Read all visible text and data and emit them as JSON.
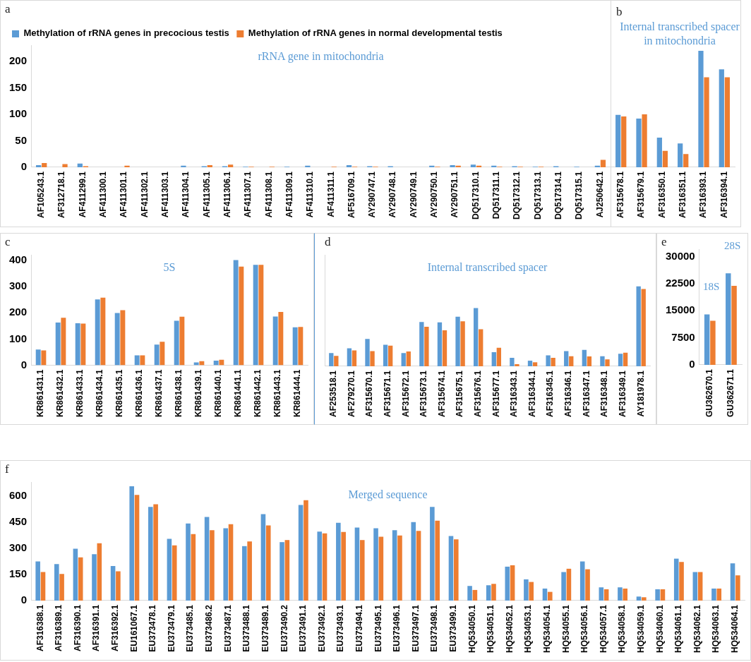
{
  "chart_data": [
    {
      "type": "bar",
      "title": "a",
      "subtitle": "rRNA gene in mitochondria",
      "legend": "top left",
      "grid": false,
      "categories": [
        "AF105243.1",
        "AF312718.1",
        "AF411299.1",
        "AF411300.1",
        "AF411301.1",
        "AF411302.1",
        "AF411303.1",
        "AF411304.1",
        "AF411305.1",
        "AF411306.1",
        "AF411307.1",
        "AF411308.1",
        "AF411309.1",
        "AF411310.1",
        "AF411311.1",
        "AF516709.1",
        "AY290747.1",
        "AY290748.1",
        "AY290749.1",
        "AY290750.1",
        "AY290751.1",
        "DQ517310.1",
        "DQ517311.1",
        "DQ517312.1",
        "DQ517313.1",
        "DQ517314.1",
        "DQ517315.1",
        "AJ250642.1",
        "AF315678.1",
        "AF315679.1",
        "AF316350.1",
        "AF316351.1",
        "AF316393.1",
        "AF316394.1"
      ],
      "series": [
        {
          "name": "Methylation of rRNA genes in precocious testis",
          "color": "#5b9bd5",
          "values": [
            4,
            0,
            7,
            0,
            0,
            0,
            0,
            3,
            2,
            2,
            1,
            0,
            1,
            3,
            0,
            4,
            2,
            2,
            0,
            3,
            4,
            5,
            3,
            2,
            1,
            2,
            1,
            3,
            99,
            92,
            56,
            45,
            220,
            185
          ]
        },
        {
          "name": "Methylation of rRNA genes in normal developmental testis",
          "color": "#ed7d31",
          "values": [
            8,
            6,
            2,
            0,
            3,
            0,
            0,
            0,
            4,
            5,
            1,
            1,
            0,
            0,
            1,
            1,
            1,
            0,
            0,
            1,
            3,
            3,
            1,
            1,
            1,
            0,
            0,
            14,
            96,
            100,
            31,
            25,
            170,
            170
          ]
        }
      ],
      "annotations": [
        "b",
        "Internal transcribed spacer in mitochondria"
      ],
      "ylim": [
        0,
        230
      ],
      "yticks": [
        0,
        50,
        100,
        150,
        200
      ]
    },
    {
      "type": "bar",
      "title": "c",
      "subtitle": "5S",
      "grid": false,
      "categories": [
        "KR861431.1",
        "KR861432.1",
        "KR861433.1",
        "KR861434.1",
        "KR861435.1",
        "KR861436.1",
        "KR861437.1",
        "KR861438.1",
        "KR861439.1",
        "KR861440.1",
        "KR861441.1",
        "KR861442.1",
        "KR861443.1",
        "KR861444.1"
      ],
      "series": [
        {
          "color": "#5b9bd5",
          "values": [
            60,
            163,
            160,
            251,
            199,
            38,
            79,
            170,
            11,
            18,
            401,
            383,
            186,
            145
          ]
        },
        {
          "color": "#ed7d31",
          "values": [
            57,
            181,
            159,
            258,
            210,
            38,
            90,
            185,
            16,
            21,
            376,
            383,
            203,
            146
          ]
        }
      ],
      "ylim": [
        0,
        420
      ],
      "yticks": [
        0,
        100,
        200,
        300,
        400
      ]
    },
    {
      "type": "bar",
      "title": "d",
      "subtitle": "Internal transcribed spacer",
      "grid": false,
      "tick_labels": "x",
      "categories": [
        "AF253518.1",
        "AF279270.1",
        "AF315670.1",
        "AF315671.1",
        "AF315672.1",
        "AF315673.1",
        "AF315674.1",
        "AF315675.1",
        "AF315676.1",
        "AF315677.1",
        "AF316343.1",
        "AF316344.1",
        "AF316345.1",
        "AF316346.1",
        "AF316347.1",
        "AF316348.1",
        "AF316349.1",
        "AY181978.1"
      ],
      "series": [
        {
          "color": "#5b9bd5",
          "values": [
            50,
            68,
            103,
            81,
            50,
            167,
            166,
            187,
            220,
            53,
            32,
            21,
            41,
            57,
            62,
            38,
            47,
            302
          ]
        },
        {
          "color": "#ed7d31",
          "values": [
            39,
            60,
            57,
            78,
            56,
            149,
            136,
            170,
            140,
            70,
            8,
            15,
            32,
            38,
            37,
            26,
            51,
            292
          ]
        }
      ],
      "ylim": [
        0,
        420
      ],
      "yticks": [
        0,
        100,
        200,
        300,
        400
      ]
    },
    {
      "type": "bar",
      "title": "e",
      "grid": false,
      "categories": [
        "GU362670.1",
        "GU362671.1"
      ],
      "series": [
        {
          "color": "#5b9bd5",
          "values": [
            14000,
            25400
          ]
        },
        {
          "color": "#ed7d31",
          "values": [
            12200,
            21900
          ]
        }
      ],
      "annotations": [
        "18S",
        "28S"
      ],
      "ylim": [
        0,
        32000
      ],
      "yticks": [
        0,
        7500,
        15000,
        22500,
        30000
      ]
    },
    {
      "type": "bar",
      "title": "f",
      "subtitle": "Merged sequence",
      "grid": false,
      "categories": [
        "AF316388.1",
        "AF316389.1",
        "AF316390.1",
        "AF316391.1",
        "AF316392.1",
        "EU161067.1",
        "EU373478.1",
        "EU373479.1",
        "EU373485.1",
        "EU373486.2",
        "EU373487.1",
        "EU373488.1",
        "EU373489.1",
        "EU373490.2",
        "EU373491.1",
        "EU373492.1",
        "EU373493.1",
        "EU373494.1",
        "EU373495.1",
        "EU373496.1",
        "EU373497.1",
        "EU373498.1",
        "EU373499.1",
        "HQ534050.1",
        "HQ534051.1",
        "HQ534052.1",
        "HQ534053.1",
        "HQ534054.1",
        "HQ534055.1",
        "HQ534056.1",
        "HQ534057.1",
        "HQ534058.1",
        "HQ534059.1",
        "HQ534060.1",
        "HQ534061.1",
        "HQ534062.1",
        "HQ534063.1",
        "HQ534064.1"
      ],
      "series": [
        {
          "color": "#5b9bd5",
          "values": [
            225,
            210,
            298,
            267,
            199,
            657,
            539,
            355,
            443,
            481,
            416,
            313,
            497,
            336,
            550,
            397,
            447,
            420,
            416,
            405,
            451,
            539,
            371,
            84,
            88,
            195,
            122,
            69,
            164,
            225,
            76,
            76,
            23,
            65,
            241,
            164,
            69,
            214
          ]
        },
        {
          "color": "#ed7d31",
          "values": [
            164,
            153,
            248,
            330,
            168,
            608,
            554,
            317,
            382,
            405,
            439,
            340,
            432,
            348,
            577,
            386,
            394,
            348,
            367,
            374,
            401,
            459,
            352,
            61,
            96,
            203,
            107,
            50,
            183,
            180,
            65,
            69,
            19,
            65,
            222,
            164,
            69,
            145
          ]
        }
      ],
      "ylim": [
        0,
        680
      ],
      "yticks": [
        0,
        150,
        300,
        450,
        600
      ]
    }
  ]
}
